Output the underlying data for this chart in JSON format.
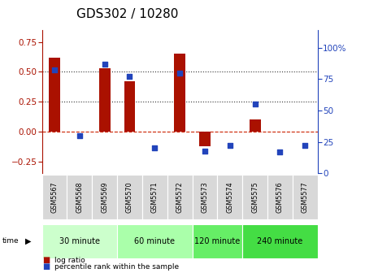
{
  "title": "GDS302 / 10280",
  "samples": [
    "GSM5567",
    "GSM5568",
    "GSM5569",
    "GSM5570",
    "GSM5571",
    "GSM5572",
    "GSM5573",
    "GSM5574",
    "GSM5575",
    "GSM5576",
    "GSM5577"
  ],
  "log_ratio": [
    0.62,
    0.0,
    0.53,
    0.42,
    0.0,
    0.65,
    -0.12,
    0.0,
    0.1,
    0.0,
    0.0
  ],
  "percentile": [
    82,
    30,
    87,
    77,
    20,
    80,
    18,
    22,
    55,
    17,
    22
  ],
  "groups": [
    {
      "label": "30 minute",
      "indices": [
        0,
        1,
        2
      ],
      "color": "#ccffcc"
    },
    {
      "label": "60 minute",
      "indices": [
        3,
        4,
        5
      ],
      "color": "#aaffaa"
    },
    {
      "label": "120 minute",
      "indices": [
        6,
        7
      ],
      "color": "#66ee66"
    },
    {
      "label": "240 minute",
      "indices": [
        8,
        9,
        10
      ],
      "color": "#44dd44"
    }
  ],
  "bar_color": "#aa1100",
  "dot_color": "#2244bb",
  "ylim_left": [
    -0.35,
    0.85
  ],
  "ylim_right": [
    0,
    114
  ],
  "yticks_left": [
    -0.25,
    0.0,
    0.25,
    0.5,
    0.75
  ],
  "yticks_right": [
    0,
    25,
    50,
    75,
    100
  ],
  "hlines": [
    0.0,
    0.25,
    0.5
  ],
  "hline_styles": [
    "--",
    ":",
    ":"
  ],
  "hline_colors": [
    "#cc2200",
    "#333333",
    "#333333"
  ],
  "legend": [
    "log ratio",
    "percentile rank within the sample"
  ],
  "title_fontsize": 11,
  "tick_fontsize": 7.5,
  "sample_fontsize": 5.8,
  "group_fontsize": 7,
  "legend_fontsize": 6.5
}
